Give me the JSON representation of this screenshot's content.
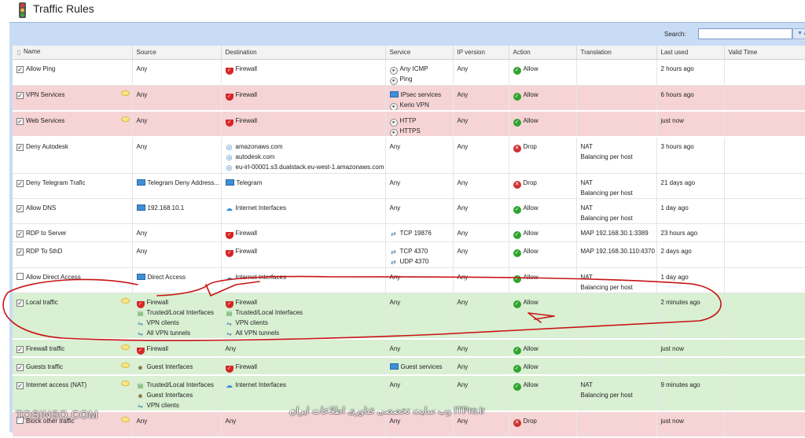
{
  "window": {
    "title": "Traffic Rules"
  },
  "toolbar": {
    "search_label": "Search:",
    "search_value": ""
  },
  "columns": [
    "Name",
    "Source",
    "Destination",
    "Service",
    "IP version",
    "Action",
    "Translation",
    "Last used",
    "Valid Time"
  ],
  "rows": [
    {
      "style": "white",
      "checked": true,
      "name": "Allow Ping",
      "comment": false,
      "source": [
        {
          "icon": "",
          "text": "Any"
        }
      ],
      "destination": [
        {
          "icon": "shield",
          "text": "Firewall"
        }
      ],
      "service": [
        {
          "icon": "svc",
          "text": "Any ICMP"
        },
        {
          "icon": "svc",
          "text": "Ping"
        }
      ],
      "ipversion": "Any",
      "action": {
        "icon": "allow",
        "text": "Allow"
      },
      "translation": [],
      "lastused": "2 hours ago"
    },
    {
      "style": "pink",
      "checked": true,
      "name": "VPN Services",
      "comment": true,
      "source": [
        {
          "icon": "",
          "text": "Any"
        }
      ],
      "destination": [
        {
          "icon": "shield",
          "text": "Firewall"
        }
      ],
      "service": [
        {
          "icon": "monitor",
          "text": "IPsec services"
        },
        {
          "icon": "svc",
          "text": "Kerio VPN"
        }
      ],
      "ipversion": "Any",
      "action": {
        "icon": "allow",
        "text": "Allow"
      },
      "translation": [],
      "lastused": "6 hours ago"
    },
    {
      "style": "pink",
      "checked": true,
      "name": "Web Services",
      "comment": true,
      "source": [
        {
          "icon": "",
          "text": "Any"
        }
      ],
      "destination": [
        {
          "icon": "shield",
          "text": "Firewall"
        }
      ],
      "service": [
        {
          "icon": "svc",
          "text": "HTTP"
        },
        {
          "icon": "svc",
          "text": "HTTPS"
        }
      ],
      "ipversion": "Any",
      "action": {
        "icon": "allow",
        "text": "Allow"
      },
      "translation": [],
      "lastused": "just now"
    },
    {
      "style": "white",
      "checked": true,
      "name": "Deny Autodesk",
      "comment": false,
      "source": [
        {
          "icon": "",
          "text": "Any"
        }
      ],
      "destination": [
        {
          "icon": "globe",
          "text": "amazonaws.com"
        },
        {
          "icon": "globe",
          "text": "autodesk.com"
        },
        {
          "icon": "globe",
          "text": "eu-irl-00001.s3.dualstack.eu-west-1.amazonaws.com"
        }
      ],
      "service": [
        {
          "icon": "",
          "text": "Any"
        }
      ],
      "ipversion": "Any",
      "action": {
        "icon": "drop",
        "text": "Drop"
      },
      "translation": [
        "NAT",
        "Balancing per host"
      ],
      "lastused": "3 hours ago"
    },
    {
      "style": "white",
      "checked": true,
      "name": "Deny Telegram Trafic",
      "comment": false,
      "source": [
        {
          "icon": "monitor",
          "text": "Telegram Deny Address..."
        }
      ],
      "destination": [
        {
          "icon": "monitor",
          "text": "Telegram"
        }
      ],
      "service": [
        {
          "icon": "",
          "text": "Any"
        }
      ],
      "ipversion": "Any",
      "action": {
        "icon": "drop",
        "text": "Drop"
      },
      "translation": [
        "NAT",
        "Balancing per host"
      ],
      "lastused": "21 days ago"
    },
    {
      "style": "white",
      "checked": true,
      "name": "Allow DNS",
      "comment": false,
      "source": [
        {
          "icon": "monitor",
          "text": "192.168.10.1"
        }
      ],
      "destination": [
        {
          "icon": "cloud",
          "text": "Internet Interfaces"
        }
      ],
      "service": [
        {
          "icon": "",
          "text": "Any"
        }
      ],
      "ipversion": "Any",
      "action": {
        "icon": "allow",
        "text": "Allow"
      },
      "translation": [
        "NAT",
        "Balancing per host"
      ],
      "lastused": "1 day ago"
    },
    {
      "style": "white",
      "checked": true,
      "name": "RDP to Server",
      "comment": false,
      "source": [
        {
          "icon": "",
          "text": "Any"
        }
      ],
      "destination": [
        {
          "icon": "shield",
          "text": "Firewall"
        }
      ],
      "service": [
        {
          "icon": "arrows",
          "text": "TCP 19876"
        }
      ],
      "ipversion": "Any",
      "action": {
        "icon": "allow",
        "text": "Allow"
      },
      "translation": [
        "MAP 192.168.30.1:3389"
      ],
      "lastused": "23 hours ago"
    },
    {
      "style": "white",
      "checked": true,
      "name": "RDP To 5thD",
      "comment": false,
      "source": [
        {
          "icon": "",
          "text": "Any"
        }
      ],
      "destination": [
        {
          "icon": "shield",
          "text": "Firewall"
        }
      ],
      "service": [
        {
          "icon": "arrows",
          "text": "TCP 4370"
        },
        {
          "icon": "arrows",
          "text": "UDP 4370"
        }
      ],
      "ipversion": "Any",
      "action": {
        "icon": "allow",
        "text": "Allow"
      },
      "translation": [
        "MAP 192.168.30.110:4370"
      ],
      "lastused": "2 days ago"
    },
    {
      "style": "white",
      "checked": false,
      "name": "Allow Direct Access",
      "comment": false,
      "source": [
        {
          "icon": "monitor",
          "text": "Direct Access"
        }
      ],
      "destination": [
        {
          "icon": "cloud",
          "text": "Internet Interfaces"
        }
      ],
      "service": [
        {
          "icon": "",
          "text": "Any"
        }
      ],
      "ipversion": "Any",
      "action": {
        "icon": "allow",
        "text": "Allow"
      },
      "translation": [
        "NAT",
        "Balancing per host"
      ],
      "lastused": "1 day ago"
    },
    {
      "style": "green",
      "checked": true,
      "name": "Local traffic",
      "comment": true,
      "source": [
        {
          "icon": "shield",
          "text": "Firewall"
        },
        {
          "icon": "net",
          "text": "Trusted/Local Interfaces"
        },
        {
          "icon": "vpn",
          "text": "VPN clients"
        },
        {
          "icon": "vpn",
          "text": "All VPN tunnels"
        }
      ],
      "destination": [
        {
          "icon": "shield",
          "text": "Firewall"
        },
        {
          "icon": "net",
          "text": "Trusted/Local Interfaces"
        },
        {
          "icon": "vpn",
          "text": "VPN clients"
        },
        {
          "icon": "vpn",
          "text": "All VPN tunnels"
        }
      ],
      "service": [
        {
          "icon": "",
          "text": "Any"
        }
      ],
      "ipversion": "Any",
      "action": {
        "icon": "allow",
        "text": "Allow"
      },
      "translation": [],
      "lastused": "2 minutes ago"
    },
    {
      "style": "green",
      "checked": true,
      "name": "Firewall traffic",
      "comment": true,
      "source": [
        {
          "icon": "shield",
          "text": "Firewall"
        }
      ],
      "destination": [
        {
          "icon": "",
          "text": "Any"
        }
      ],
      "service": [
        {
          "icon": "",
          "text": "Any"
        }
      ],
      "ipversion": "Any",
      "action": {
        "icon": "allow",
        "text": "Allow"
      },
      "translation": [],
      "lastused": "just now"
    },
    {
      "style": "green",
      "checked": true,
      "name": "Guests traffic",
      "comment": true,
      "source": [
        {
          "icon": "users",
          "text": "Guest Interfaces"
        }
      ],
      "destination": [
        {
          "icon": "shield",
          "text": "Firewall"
        }
      ],
      "service": [
        {
          "icon": "monitor",
          "text": "Guest services"
        }
      ],
      "ipversion": "Any",
      "action": {
        "icon": "allow",
        "text": "Allow"
      },
      "translation": [],
      "lastused": ""
    },
    {
      "style": "green",
      "checked": true,
      "name": "Internet access (NAT)",
      "comment": true,
      "source": [
        {
          "icon": "net",
          "text": "Trusted/Local Interfaces"
        },
        {
          "icon": "users",
          "text": "Guest Interfaces"
        },
        {
          "icon": "vpn",
          "text": "VPN clients"
        }
      ],
      "destination": [
        {
          "icon": "cloud",
          "text": "Internet Interfaces"
        }
      ],
      "service": [
        {
          "icon": "",
          "text": "Any"
        }
      ],
      "ipversion": "Any",
      "action": {
        "icon": "allow",
        "text": "Allow"
      },
      "translation": [
        "NAT",
        "Balancing per host"
      ],
      "lastused": "9 minutes ago"
    },
    {
      "style": "pink",
      "checked": false,
      "name": "Block other traffic",
      "comment": true,
      "source": [
        {
          "icon": "",
          "text": "Any"
        }
      ],
      "destination": [
        {
          "icon": "",
          "text": "Any"
        }
      ],
      "service": [
        {
          "icon": "",
          "text": "Any"
        }
      ],
      "ipversion": "Any",
      "action": {
        "icon": "drop",
        "text": "Drop"
      },
      "translation": [],
      "lastused": "just now"
    }
  ],
  "watermarks": {
    "left": "TOSINSO.COM",
    "right": "ITPro.ir وب سایت تخصصی فناوری اطلاعات ایران"
  },
  "colors": {
    "pink_row": "#f6d4d6",
    "green_row": "#d9f0d3",
    "toolbar": "#c8dcf5",
    "annotation": "#c81414"
  },
  "icons": {
    "shield": "firewall-shield-icon",
    "svc": "service-icon",
    "allow": "allow-check-icon",
    "drop": "drop-x-icon",
    "cloud": "internet-cloud-icon",
    "globe": "globe-icon",
    "monitor": "address-group-icon",
    "arrows": "port-arrows-icon",
    "users": "guest-users-icon",
    "vpn": "vpn-icon",
    "net": "network-interface-icon"
  }
}
